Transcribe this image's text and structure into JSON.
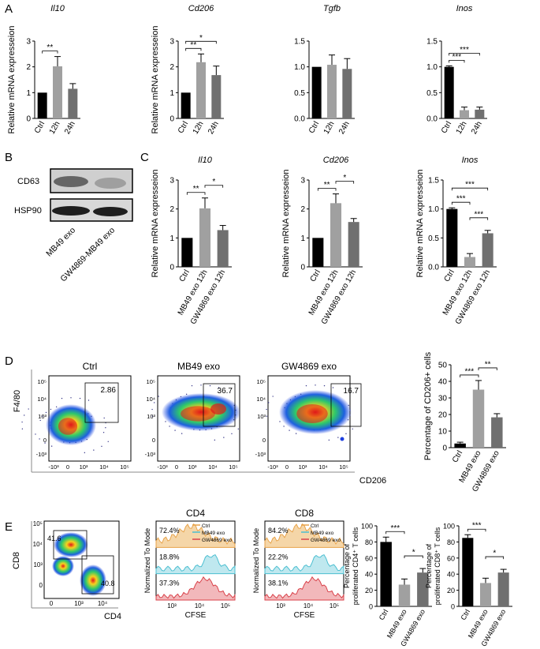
{
  "panel_labels": {
    "a": "A",
    "b": "B",
    "c": "C",
    "d": "D",
    "e": "E"
  },
  "colors": {
    "black": "#000000",
    "light_gray": "#a0a0a0",
    "dark_gray": "#707070",
    "ctrl_hist": "#e8a34a",
    "mb49_hist": "#4cbfd1",
    "gw_hist": "#d9424a"
  },
  "western": {
    "bands": [
      "CD63",
      "HSP90"
    ],
    "lanes": [
      "MB49 exo",
      "GW4869-MB49 exo"
    ]
  },
  "chart_data": [
    {
      "id": "a1",
      "type": "bar",
      "title": "Il10",
      "title_italic": true,
      "ylabel": "Relative mRNA expresseion",
      "ylim": [
        0,
        3
      ],
      "yticks": [
        "0",
        "1",
        "2",
        "3"
      ],
      "categories": [
        "Ctrl",
        "12h",
        "24h"
      ],
      "values": [
        1.0,
        2.02,
        1.15
      ],
      "errors": [
        0,
        0.38,
        0.2
      ],
      "bar_colors": [
        "#000000",
        "#a0a0a0",
        "#707070"
      ],
      "sig": [
        {
          "from": 0,
          "to": 1,
          "label": "**"
        }
      ]
    },
    {
      "id": "a2",
      "type": "bar",
      "title": "Cd206",
      "title_italic": true,
      "ylabel": "Relative mRNA expresseion",
      "ylim": [
        0,
        3
      ],
      "yticks": [
        "0",
        "1",
        "2",
        "3"
      ],
      "categories": [
        "Ctrl",
        "12h",
        "24h"
      ],
      "values": [
        1.0,
        2.18,
        1.68
      ],
      "errors": [
        0,
        0.32,
        0.35
      ],
      "bar_colors": [
        "#000000",
        "#a0a0a0",
        "#707070"
      ],
      "sig": [
        {
          "from": 0,
          "to": 1,
          "label": "**"
        },
        {
          "from": 0,
          "to": 2,
          "label": "*"
        }
      ]
    },
    {
      "id": "a3",
      "type": "bar",
      "title": "Tgfb",
      "title_italic": true,
      "ylabel": "",
      "ylim": [
        0,
        1.5
      ],
      "yticks": [
        "0.0",
        "0.5",
        "1.0",
        "1.5"
      ],
      "categories": [
        "Ctrl",
        "12h",
        "24h"
      ],
      "values": [
        1.0,
        1.04,
        0.96
      ],
      "errors": [
        0,
        0.19,
        0.2
      ],
      "bar_colors": [
        "#000000",
        "#a0a0a0",
        "#707070"
      ],
      "sig": []
    },
    {
      "id": "a4",
      "type": "bar",
      "title": "Inos",
      "title_italic": true,
      "ylabel": "",
      "ylim": [
        0,
        1.5
      ],
      "yticks": [
        "0.0",
        "0.5",
        "1.0",
        "1.5"
      ],
      "categories": [
        "Ctrl",
        "12h",
        "24h"
      ],
      "values": [
        1.0,
        0.16,
        0.17
      ],
      "errors": [
        0.02,
        0.06,
        0.05
      ],
      "bar_colors": [
        "#000000",
        "#a0a0a0",
        "#707070"
      ],
      "sig": [
        {
          "from": 0,
          "to": 1,
          "label": "***"
        },
        {
          "from": 0,
          "to": 2,
          "label": "***"
        }
      ]
    },
    {
      "id": "c1",
      "type": "bar",
      "title": "Il10",
      "title_italic": true,
      "ylabel": "Relative mRNA expresseion",
      "ylim": [
        0,
        3
      ],
      "yticks": [
        "0",
        "1",
        "2",
        "3"
      ],
      "categories": [
        "Ctrl",
        "MB49 exo 12h",
        "GW4869 exo 12h"
      ],
      "values": [
        1.0,
        2.02,
        1.27
      ],
      "errors": [
        0,
        0.36,
        0.16
      ],
      "bar_colors": [
        "#000000",
        "#a0a0a0",
        "#707070"
      ],
      "sig": [
        {
          "from": 0,
          "to": 1,
          "label": "**"
        },
        {
          "from": 1,
          "to": 2,
          "label": "*"
        }
      ]
    },
    {
      "id": "c2",
      "type": "bar",
      "title": "Cd206",
      "title_italic": true,
      "ylabel": "Relative mRNA expresseion",
      "ylim": [
        0,
        3
      ],
      "yticks": [
        "0",
        "1",
        "2",
        "3"
      ],
      "categories": [
        "Ctrl",
        "MB49 exo 12h",
        "GW4869 exo 12h"
      ],
      "values": [
        1.0,
        2.2,
        1.55
      ],
      "errors": [
        0,
        0.32,
        0.12
      ],
      "bar_colors": [
        "#000000",
        "#a0a0a0",
        "#707070"
      ],
      "sig": [
        {
          "from": 0,
          "to": 1,
          "label": "**"
        },
        {
          "from": 1,
          "to": 2,
          "label": "*"
        }
      ]
    },
    {
      "id": "c3",
      "type": "bar",
      "title": "Inos",
      "title_italic": true,
      "ylabel": "Relative mRNA expresseion",
      "ylim": [
        0,
        1.5
      ],
      "yticks": [
        "0.0",
        "0.5",
        "1.0",
        "1.5"
      ],
      "categories": [
        "Ctrl",
        "MB49 exo 12h",
        "GW4869 exo 12h"
      ],
      "values": [
        1.0,
        0.17,
        0.58
      ],
      "errors": [
        0.02,
        0.06,
        0.05
      ],
      "bar_colors": [
        "#000000",
        "#a0a0a0",
        "#707070"
      ],
      "sig": [
        {
          "from": 0,
          "to": 1,
          "label": "***"
        },
        {
          "from": 1,
          "to": 2,
          "label": "***"
        },
        {
          "from": 0,
          "to": 2,
          "label": "***"
        }
      ]
    },
    {
      "id": "d",
      "type": "bar",
      "title": "",
      "title_italic": false,
      "ylabel": "Percentage of CD206+ cells",
      "ylim": [
        0,
        50
      ],
      "yticks": [
        "0",
        "10",
        "20",
        "30",
        "40",
        "50"
      ],
      "categories": [
        "Ctrl",
        "MB49 exo",
        "GW4869 exo"
      ],
      "values": [
        2.5,
        35,
        18.3
      ],
      "errors": [
        0.8,
        5.5,
        2.2
      ],
      "bar_colors": [
        "#000000",
        "#a0a0a0",
        "#707070"
      ],
      "sig": [
        {
          "from": 0,
          "to": 1,
          "label": "***"
        },
        {
          "from": 1,
          "to": 2,
          "label": "**"
        }
      ]
    },
    {
      "id": "e1",
      "type": "bar",
      "title": "",
      "title_italic": false,
      "ylabel": "Percentage of proliferated CD4⁺ T cells",
      "ylim": [
        0,
        100
      ],
      "yticks": [
        "0",
        "20",
        "40",
        "60",
        "80",
        "100"
      ],
      "categories": [
        "Ctrl",
        "MB49 exo",
        "GW4869 exo"
      ],
      "values": [
        80,
        27,
        42
      ],
      "errors": [
        6,
        7,
        5
      ],
      "bar_colors": [
        "#000000",
        "#a0a0a0",
        "#707070"
      ],
      "sig": [
        {
          "from": 0,
          "to": 1,
          "label": "***"
        },
        {
          "from": 1,
          "to": 2,
          "label": "*"
        }
      ]
    },
    {
      "id": "e2",
      "type": "bar",
      "title": "",
      "title_italic": false,
      "ylabel": "Percentage of proliferated CD8⁺ T cells",
      "ylim": [
        0,
        100
      ],
      "yticks": [
        "0",
        "20",
        "40",
        "60",
        "80",
        "100"
      ],
      "categories": [
        "Ctrl",
        "MB49 exo",
        "GW4869 exo"
      ],
      "values": [
        85,
        29,
        42
      ],
      "errors": [
        4,
        6,
        4
      ],
      "bar_colors": [
        "#000000",
        "#a0a0a0",
        "#707070"
      ],
      "sig": [
        {
          "from": 0,
          "to": 1,
          "label": "***"
        },
        {
          "from": 1,
          "to": 2,
          "label": "*"
        }
      ]
    }
  ],
  "flow_d": {
    "panels": [
      {
        "title": "Ctrl",
        "gate": "2.86"
      },
      {
        "title": "MB49 exo",
        "gate": "36.7"
      },
      {
        "title": "GW4869 exo",
        "gate": "16.7"
      }
    ],
    "yaxis": "F4/80",
    "xaxis": "CD206",
    "yticks": [
      "10⁵",
      "10⁴",
      "10³",
      "0",
      "-10³"
    ],
    "xticks": [
      "-10³",
      "0",
      "10³",
      "10⁴",
      "10⁵"
    ]
  },
  "flow_e": {
    "yaxis": "CD8",
    "xaxis": "CD4",
    "gate_upper": "41.6",
    "gate_lower": "40.8",
    "yticks": [
      "10⁵",
      "10⁴",
      "10³",
      "0"
    ],
    "xticks": [
      "0",
      "10³",
      "10⁴"
    ]
  },
  "histograms": [
    {
      "title": "CD4",
      "ylabel": "Normalized To Mode",
      "xlabel": "CFSE",
      "legend": [
        "Ctrl",
        "MB49 exo",
        "GW4869 exo"
      ],
      "percentages": [
        "72.4%",
        "18.8%",
        "37.3%"
      ],
      "xticks": [
        "10³",
        "10⁴",
        "10⁵"
      ]
    },
    {
      "title": "CD8",
      "ylabel": "Normalized To Mode",
      "xlabel": "CFSE",
      "legend": [
        "Ctrl",
        "MB49 exo",
        "GW4869 exo"
      ],
      "percentages": [
        "84.2%",
        "22.2%",
        "38.1%"
      ],
      "xticks": [
        "10³",
        "10⁴",
        "10⁵"
      ]
    }
  ]
}
